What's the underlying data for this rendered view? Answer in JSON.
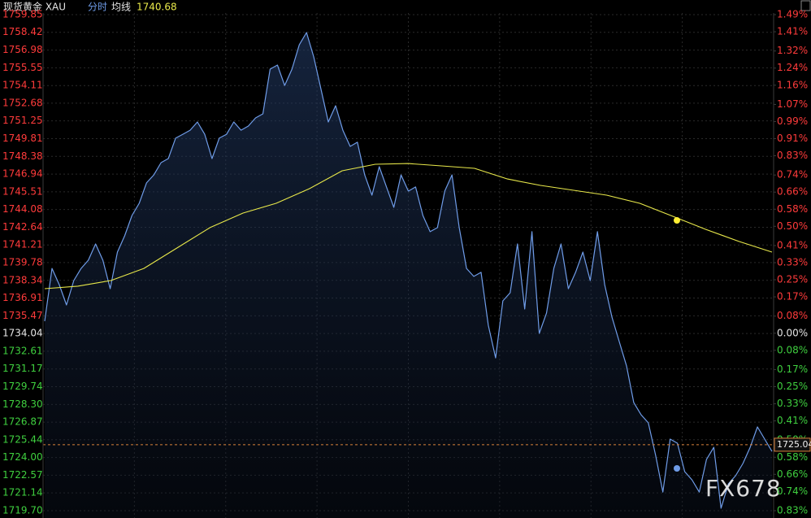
{
  "chart_data": {
    "type": "line",
    "title": "现货黄金 XAU",
    "subtitle": "分时",
    "ma_label": "均线",
    "ma_value": 1740.68,
    "watermark": "FX678",
    "last_price": 1725.04,
    "ylim": [
      1719.7,
      1759.85
    ],
    "yticks": [
      {
        "value": 1759.85,
        "label": "1759.85"
      },
      {
        "value": 1758.42,
        "label": "1758.42"
      },
      {
        "value": 1756.98,
        "label": "1756.98"
      },
      {
        "value": 1755.55,
        "label": "1755.55"
      },
      {
        "value": 1754.11,
        "label": "1754.11"
      },
      {
        "value": 1752.68,
        "label": "1752.68"
      },
      {
        "value": 1751.25,
        "label": "1751.25"
      },
      {
        "value": 1749.81,
        "label": "1749.81"
      },
      {
        "value": 1748.38,
        "label": "1748.38"
      },
      {
        "value": 1746.94,
        "label": "1746.94"
      },
      {
        "value": 1745.51,
        "label": "1745.51"
      },
      {
        "value": 1744.08,
        "label": "1744.08"
      },
      {
        "value": 1742.64,
        "label": "1742.64"
      },
      {
        "value": 1741.21,
        "label": "1741.21"
      },
      {
        "value": 1739.78,
        "label": "1739.78"
      },
      {
        "value": 1738.34,
        "label": "1738.34"
      },
      {
        "value": 1736.91,
        "label": "1736.91"
      },
      {
        "value": 1735.47,
        "label": "1735.47"
      },
      {
        "value": 1734.04,
        "label": "1734.04"
      },
      {
        "value": 1732.61,
        "label": "1732.61"
      },
      {
        "value": 1731.17,
        "label": "1731.17"
      },
      {
        "value": 1729.74,
        "label": "1729.74"
      },
      {
        "value": 1728.3,
        "label": "1728.30"
      },
      {
        "value": 1726.87,
        "label": "1726.87"
      },
      {
        "value": 1725.44,
        "label": "1725.44"
      },
      {
        "value": 1724.0,
        "label": "1724.00"
      },
      {
        "value": 1722.57,
        "label": "1722.57"
      },
      {
        "value": 1721.14,
        "label": "1721.14"
      },
      {
        "value": 1719.7,
        "label": "1719.70"
      }
    ],
    "y2lim": [
      -0.83,
      1.49
    ],
    "y2ticks": [
      {
        "value": 1.49,
        "label": "1.49%"
      },
      {
        "value": 1.41,
        "label": "1.41%"
      },
      {
        "value": 1.32,
        "label": "1.32%"
      },
      {
        "value": 1.24,
        "label": "1.24%"
      },
      {
        "value": 1.16,
        "label": "1.16%"
      },
      {
        "value": 1.07,
        "label": "1.07%"
      },
      {
        "value": 0.99,
        "label": "0.99%"
      },
      {
        "value": 0.91,
        "label": "0.91%"
      },
      {
        "value": 0.83,
        "label": "0.83%"
      },
      {
        "value": 0.74,
        "label": "0.74%"
      },
      {
        "value": 0.66,
        "label": "0.66%"
      },
      {
        "value": 0.58,
        "label": "0.58%"
      },
      {
        "value": 0.5,
        "label": "0.50%"
      },
      {
        "value": 0.41,
        "label": "0.41%"
      },
      {
        "value": 0.33,
        "label": "0.33%"
      },
      {
        "value": 0.25,
        "label": "0.25%"
      },
      {
        "value": 0.17,
        "label": "0.17%"
      },
      {
        "value": 0.08,
        "label": "0.08%"
      },
      {
        "value": 0.0,
        "label": "0.00%"
      },
      {
        "value": -0.08,
        "label": "0.08%"
      },
      {
        "value": -0.17,
        "label": "0.17%"
      },
      {
        "value": -0.25,
        "label": "0.25%"
      },
      {
        "value": -0.33,
        "label": "0.33%"
      },
      {
        "value": -0.41,
        "label": "0.41%"
      },
      {
        "value": -0.5,
        "label": "0.50%"
      },
      {
        "value": -0.58,
        "label": "0.58%"
      },
      {
        "value": -0.66,
        "label": "0.66%"
      },
      {
        "value": -0.74,
        "label": "0.74%"
      },
      {
        "value": -0.83,
        "label": "0.83%"
      }
    ],
    "grid": true,
    "up_color": "#ff3b3b",
    "down_color": "#3fcf3f",
    "series": [
      {
        "color": "#6f9ce8",
        "values": [
          1735.04,
          1739.31,
          1738.0,
          1736.35,
          1738.33,
          1739.31,
          1739.97,
          1741.29,
          1739.97,
          1737.67,
          1740.63,
          1741.95,
          1743.59,
          1744.58,
          1746.23,
          1746.88,
          1747.87,
          1748.2,
          1749.85,
          1750.17,
          1750.5,
          1751.16,
          1750.17,
          1748.2,
          1749.85,
          1750.17,
          1751.16,
          1750.5,
          1750.83,
          1751.49,
          1751.82,
          1755.44,
          1755.77,
          1754.12,
          1755.44,
          1757.41,
          1758.4,
          1756.43,
          1753.79,
          1751.16,
          1752.48,
          1750.5,
          1749.19,
          1749.52,
          1746.88,
          1745.24,
          1747.54,
          1745.9,
          1744.25,
          1746.88,
          1745.57,
          1745.9,
          1743.59,
          1742.28,
          1742.61,
          1745.57,
          1746.88,
          1742.61,
          1739.31,
          1738.66,
          1738.99,
          1734.71,
          1732.07,
          1736.68,
          1737.34,
          1741.29,
          1736.02,
          1742.28,
          1734.05,
          1735.69,
          1739.31,
          1741.29,
          1737.67,
          1738.99,
          1740.63,
          1738.33,
          1742.28,
          1738.0,
          1735.36,
          1733.39,
          1731.42,
          1728.45,
          1727.47,
          1726.81,
          1724.18,
          1721.21,
          1725.49,
          1725.16,
          1722.86,
          1722.2,
          1721.21,
          1723.85,
          1724.83,
          1719.9,
          1721.87,
          1722.53,
          1723.52,
          1724.83,
          1726.48,
          1725.49,
          1724.5
        ]
      },
      {
        "color": "#e8e84a",
        "values": [
          1737.67,
          1737.87,
          1738.33,
          1739.31,
          1740.96,
          1742.61,
          1743.79,
          1744.58,
          1745.76,
          1747.21,
          1747.74,
          1747.8,
          1747.61,
          1747.41,
          1746.55,
          1746.03,
          1745.63,
          1745.24,
          1744.58,
          1743.53,
          1742.47,
          1741.49,
          1740.63
        ]
      }
    ]
  }
}
